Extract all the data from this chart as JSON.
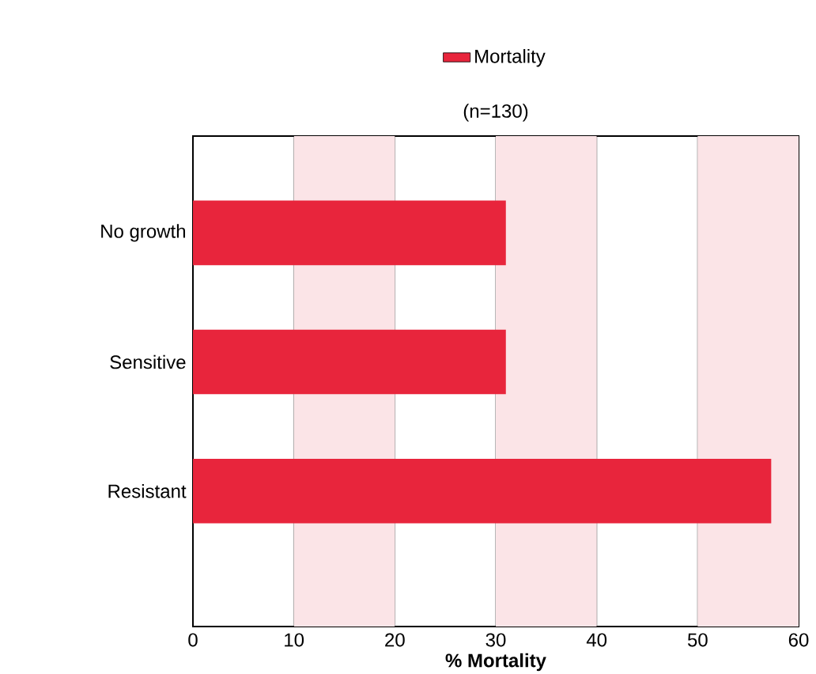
{
  "chart_data": {
    "type": "bar",
    "orientation": "horizontal",
    "subtitle": "(n=130)",
    "xlabel": "% Mortality",
    "categories": [
      "No growth",
      "Sensitive",
      "Resistant"
    ],
    "series": [
      {
        "name": "Mortality",
        "color": "#e8253c",
        "values": [
          31,
          31,
          57.3
        ]
      }
    ],
    "xlim": [
      0,
      60
    ],
    "xticks": [
      0,
      10,
      20,
      30,
      40,
      50,
      60
    ],
    "grid": "x",
    "legend": "top",
    "bands": [
      {
        "axis": "x",
        "from": 10,
        "to": 20,
        "color": "#fbe4e7"
      },
      {
        "axis": "x",
        "from": 30,
        "to": 40,
        "color": "#fbe4e7"
      },
      {
        "axis": "x",
        "from": 50,
        "to": 60,
        "color": "#fbe4e7"
      }
    ]
  }
}
